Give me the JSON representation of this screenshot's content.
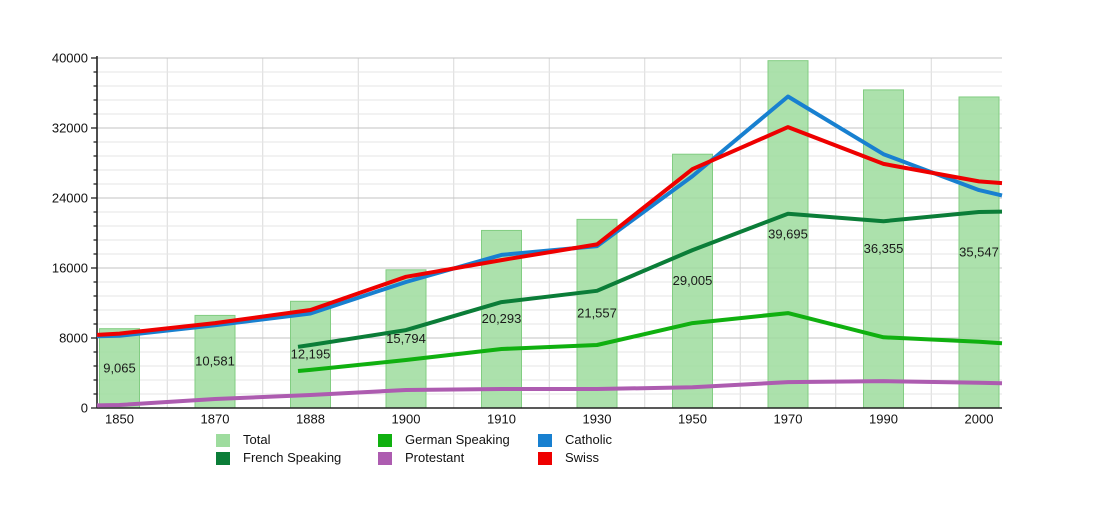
{
  "chart_data": {
    "type": "bar+line",
    "title": "",
    "categories": [
      "1850",
      "1870",
      "1888",
      "1900",
      "1910",
      "1930",
      "1950",
      "1970",
      "1990",
      "2000"
    ],
    "y_axis": {
      "min": 0,
      "max": 40000,
      "major_step": 8000,
      "minor_step": 1600,
      "tick_labels": [
        "0",
        "8000",
        "16000",
        "24000",
        "32000",
        "40000"
      ]
    },
    "grid": "major and minor horizontal lines, vertical lines between categories",
    "legend_position": "bottom",
    "bars": {
      "name": "Total",
      "color": "#9edc9e",
      "border_color": "#82cd82",
      "values": [
        9065,
        10581,
        12195,
        15794,
        20293,
        21557,
        29005,
        39695,
        36355,
        35547
      ],
      "labels": [
        "9,065",
        "10,581",
        "12,195",
        "15,794",
        "20,293",
        "21,557",
        "29,005",
        "39,695",
        "36,355",
        "35,547"
      ]
    },
    "series": [
      {
        "name": "Catholic",
        "color": "#1880d0",
        "edge_left": 8200,
        "values": [
          8250,
          9450,
          10800,
          14400,
          17500,
          18500,
          26500,
          35600,
          29000,
          24900
        ],
        "edge_right": 24300
      },
      {
        "name": "German Speaking",
        "color": "#10b010",
        "edge_left": 4230,
        "values": [
          null,
          null,
          4350,
          5490,
          6740,
          7200,
          9700,
          10850,
          8080,
          7580
        ],
        "edge_right": 7390
      },
      {
        "name": "French Speaking",
        "color": "#0b7d38",
        "edge_left": 7000,
        "values": [
          null,
          null,
          7200,
          8900,
          12100,
          13400,
          18050,
          22200,
          21350,
          22400
        ],
        "edge_right": 22450
      },
      {
        "name": "Protestant",
        "color": "#ad5cb0",
        "edge_left": 300,
        "values": [
          340,
          1030,
          1490,
          2060,
          2170,
          2170,
          2370,
          2960,
          3080,
          2890
        ],
        "edge_right": 2820
      },
      {
        "name": "Swiss",
        "color": "#ee0000",
        "edge_left": 8350,
        "values": [
          8500,
          9700,
          11200,
          15000,
          16900,
          18700,
          27300,
          32100,
          27900,
          25900
        ],
        "edge_right": 25700
      }
    ]
  },
  "legend": {
    "items": [
      {
        "label": "Total",
        "color": "#9edc9e"
      },
      {
        "label": "French Speaking",
        "color": "#0b7d38"
      },
      {
        "label": "German Speaking",
        "color": "#10b010"
      },
      {
        "label": "Protestant",
        "color": "#ad5cb0"
      },
      {
        "label": "Catholic",
        "color": "#1880d0"
      },
      {
        "label": "Swiss",
        "color": "#ee0000"
      }
    ]
  }
}
